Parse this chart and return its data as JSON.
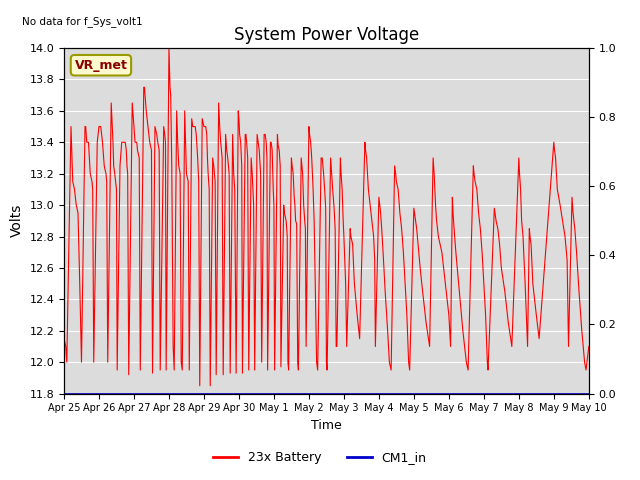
{
  "title": "System Power Voltage",
  "xlabel": "Time",
  "ylabel": "Volts",
  "ylim_left": [
    11.8,
    14.0
  ],
  "ylim_right": [
    0.0,
    1.0
  ],
  "background_color": "#ffffff",
  "plot_bg_color": "#dcdcdc",
  "no_data_text": "No data for f_Sys_volt1",
  "vr_met_label": "VR_met",
  "x_tick_labels": [
    "Apr 25",
    "Apr 26",
    "Apr 27",
    "Apr 28",
    "Apr 29",
    "Apr 30",
    "May 1",
    "May 2",
    "May 3",
    "May 4",
    "May 5",
    "May 6",
    "May 7",
    "May 8",
    "May 9",
    "May 10"
  ],
  "x_tick_positions": [
    0,
    1,
    2,
    3,
    4,
    5,
    6,
    7,
    8,
    9,
    10,
    11,
    12,
    13,
    14,
    15
  ],
  "right_yticks": [
    0.0,
    0.2,
    0.4,
    0.6,
    0.8,
    1.0
  ],
  "right_ytick_labels": [
    "0.0",
    "0.2",
    "0.4",
    "0.6",
    "0.8",
    "1.0"
  ],
  "battery_color": "#ff0000",
  "cm1_color": "#0000cc",
  "legend_entries": [
    "23x Battery",
    "CM1_in"
  ],
  "battery_data": [
    [
      0.0,
      12.15
    ],
    [
      0.05,
      12.1
    ],
    [
      0.08,
      12.0
    ],
    [
      0.2,
      13.5
    ],
    [
      0.25,
      13.15
    ],
    [
      0.3,
      13.1
    ],
    [
      0.35,
      13.0
    ],
    [
      0.4,
      12.95
    ],
    [
      0.45,
      12.5
    ],
    [
      0.5,
      12.0
    ],
    [
      0.6,
      13.5
    ],
    [
      0.62,
      13.5
    ],
    [
      0.65,
      13.4
    ],
    [
      0.7,
      13.4
    ],
    [
      0.75,
      13.2
    ],
    [
      0.8,
      13.15
    ],
    [
      0.82,
      13.1
    ],
    [
      0.85,
      12.0
    ],
    [
      0.95,
      13.4
    ],
    [
      1.0,
      13.5
    ],
    [
      1.05,
      13.5
    ],
    [
      1.1,
      13.4
    ],
    [
      1.15,
      13.25
    ],
    [
      1.2,
      13.2
    ],
    [
      1.22,
      13.15
    ],
    [
      1.25,
      12.0
    ],
    [
      1.35,
      13.65
    ],
    [
      1.4,
      13.4
    ],
    [
      1.42,
      13.25
    ],
    [
      1.45,
      13.2
    ],
    [
      1.5,
      13.1
    ],
    [
      1.52,
      11.95
    ],
    [
      1.6,
      13.25
    ],
    [
      1.65,
      13.4
    ],
    [
      1.7,
      13.4
    ],
    [
      1.75,
      13.4
    ],
    [
      1.78,
      13.35
    ],
    [
      1.8,
      13.25
    ],
    [
      1.82,
      13.2
    ],
    [
      1.85,
      11.92
    ],
    [
      1.95,
      13.65
    ],
    [
      2.0,
      13.5
    ],
    [
      2.03,
      13.4
    ],
    [
      2.05,
      13.4
    ],
    [
      2.08,
      13.4
    ],
    [
      2.1,
      13.35
    ],
    [
      2.15,
      13.3
    ],
    [
      2.18,
      11.95
    ],
    [
      2.28,
      13.75
    ],
    [
      2.3,
      13.75
    ],
    [
      2.35,
      13.6
    ],
    [
      2.4,
      13.5
    ],
    [
      2.45,
      13.4
    ],
    [
      2.5,
      13.35
    ],
    [
      2.53,
      11.93
    ],
    [
      2.6,
      13.5
    ],
    [
      2.65,
      13.45
    ],
    [
      2.68,
      13.4
    ],
    [
      2.72,
      13.35
    ],
    [
      2.75,
      11.95
    ],
    [
      2.85,
      13.5
    ],
    [
      2.88,
      13.45
    ],
    [
      2.9,
      13.4
    ],
    [
      2.92,
      11.95
    ],
    [
      3.0,
      14.0
    ],
    [
      3.03,
      13.75
    ],
    [
      3.05,
      13.7
    ],
    [
      3.08,
      13.25
    ],
    [
      3.12,
      12.1
    ],
    [
      3.15,
      11.95
    ],
    [
      3.22,
      13.6
    ],
    [
      3.25,
      13.4
    ],
    [
      3.28,
      13.25
    ],
    [
      3.32,
      13.2
    ],
    [
      3.35,
      12.0
    ],
    [
      3.38,
      11.95
    ],
    [
      3.45,
      13.6
    ],
    [
      3.5,
      13.2
    ],
    [
      3.55,
      13.15
    ],
    [
      3.58,
      11.95
    ],
    [
      3.65,
      13.55
    ],
    [
      3.68,
      13.5
    ],
    [
      3.7,
      13.5
    ],
    [
      3.72,
      13.5
    ],
    [
      3.75,
      13.5
    ],
    [
      3.78,
      13.45
    ],
    [
      3.82,
      13.3
    ],
    [
      3.85,
      13.15
    ],
    [
      3.88,
      11.85
    ],
    [
      3.95,
      13.55
    ],
    [
      4.0,
      13.5
    ],
    [
      4.05,
      13.5
    ],
    [
      4.08,
      13.45
    ],
    [
      4.1,
      13.3
    ],
    [
      4.12,
      13.2
    ],
    [
      4.15,
      13.1
    ],
    [
      4.18,
      11.85
    ],
    [
      4.25,
      13.3
    ],
    [
      4.28,
      13.25
    ],
    [
      4.3,
      13.2
    ],
    [
      4.32,
      13.15
    ],
    [
      4.35,
      11.92
    ],
    [
      4.42,
      13.65
    ],
    [
      4.45,
      13.5
    ],
    [
      4.48,
      13.4
    ],
    [
      4.5,
      13.35
    ],
    [
      4.52,
      13.3
    ],
    [
      4.55,
      11.92
    ],
    [
      4.62,
      13.45
    ],
    [
      4.65,
      13.35
    ],
    [
      4.68,
      13.3
    ],
    [
      4.72,
      13.2
    ],
    [
      4.75,
      11.93
    ],
    [
      4.82,
      13.45
    ],
    [
      4.85,
      13.2
    ],
    [
      4.88,
      13.1
    ],
    [
      4.92,
      11.93
    ],
    [
      4.98,
      13.6
    ],
    [
      5.0,
      13.55
    ],
    [
      5.02,
      13.45
    ],
    [
      5.05,
      13.4
    ],
    [
      5.08,
      13.25
    ],
    [
      5.1,
      11.93
    ],
    [
      5.18,
      13.45
    ],
    [
      5.2,
      13.45
    ],
    [
      5.22,
      13.4
    ],
    [
      5.25,
      13.3
    ],
    [
      5.28,
      11.95
    ],
    [
      5.35,
      13.3
    ],
    [
      5.38,
      13.2
    ],
    [
      5.4,
      13.1
    ],
    [
      5.42,
      13.0
    ],
    [
      5.45,
      11.95
    ],
    [
      5.52,
      13.45
    ],
    [
      5.55,
      13.4
    ],
    [
      5.58,
      13.35
    ],
    [
      5.62,
      13.2
    ],
    [
      5.65,
      12.0
    ],
    [
      5.72,
      13.45
    ],
    [
      5.75,
      13.45
    ],
    [
      5.78,
      13.4
    ],
    [
      5.8,
      13.3
    ],
    [
      5.82,
      11.95
    ],
    [
      5.9,
      13.4
    ],
    [
      5.92,
      13.4
    ],
    [
      5.95,
      13.35
    ],
    [
      5.98,
      13.1
    ],
    [
      6.0,
      13.0
    ],
    [
      6.02,
      11.95
    ],
    [
      6.1,
      13.45
    ],
    [
      6.12,
      13.38
    ],
    [
      6.15,
      13.35
    ],
    [
      6.18,
      13.25
    ],
    [
      6.2,
      11.97
    ],
    [
      6.28,
      13.0
    ],
    [
      6.3,
      12.95
    ],
    [
      6.35,
      12.9
    ],
    [
      6.38,
      12.8
    ],
    [
      6.4,
      12.0
    ],
    [
      6.42,
      11.95
    ],
    [
      6.5,
      13.3
    ],
    [
      6.52,
      13.25
    ],
    [
      6.55,
      13.2
    ],
    [
      6.58,
      13.05
    ],
    [
      6.6,
      13.0
    ],
    [
      6.62,
      12.9
    ],
    [
      6.65,
      12.88
    ],
    [
      6.68,
      12.0
    ],
    [
      6.7,
      11.95
    ],
    [
      6.78,
      13.3
    ],
    [
      6.8,
      13.25
    ],
    [
      6.82,
      13.2
    ],
    [
      6.85,
      13.0
    ],
    [
      6.88,
      12.9
    ],
    [
      6.9,
      12.85
    ],
    [
      6.92,
      12.1
    ],
    [
      7.0,
      13.5
    ],
    [
      7.02,
      13.45
    ],
    [
      7.05,
      13.4
    ],
    [
      7.08,
      13.3
    ],
    [
      7.1,
      13.2
    ],
    [
      7.12,
      13.1
    ],
    [
      7.15,
      12.9
    ],
    [
      7.18,
      12.5
    ],
    [
      7.22,
      12.0
    ],
    [
      7.25,
      11.95
    ],
    [
      7.35,
      13.3
    ],
    [
      7.38,
      13.3
    ],
    [
      7.4,
      13.25
    ],
    [
      7.42,
      13.2
    ],
    [
      7.45,
      13.1
    ],
    [
      7.48,
      12.98
    ],
    [
      7.5,
      12.0
    ],
    [
      7.52,
      11.95
    ],
    [
      7.62,
      13.3
    ],
    [
      7.65,
      13.2
    ],
    [
      7.68,
      13.1
    ],
    [
      7.72,
      12.98
    ],
    [
      7.75,
      12.85
    ],
    [
      7.78,
      12.1
    ],
    [
      7.8,
      12.1
    ],
    [
      7.9,
      13.3
    ],
    [
      7.92,
      13.2
    ],
    [
      7.95,
      13.1
    ],
    [
      7.98,
      12.9
    ],
    [
      8.0,
      12.8
    ],
    [
      8.05,
      12.5
    ],
    [
      8.08,
      12.1
    ],
    [
      8.18,
      12.85
    ],
    [
      8.2,
      12.8
    ],
    [
      8.25,
      12.75
    ],
    [
      8.3,
      12.5
    ],
    [
      8.38,
      12.3
    ],
    [
      8.45,
      12.15
    ],
    [
      8.6,
      13.4
    ],
    [
      8.62,
      13.35
    ],
    [
      8.65,
      13.3
    ],
    [
      8.7,
      13.1
    ],
    [
      8.75,
      13.0
    ],
    [
      8.8,
      12.9
    ],
    [
      8.85,
      12.8
    ],
    [
      8.88,
      12.65
    ],
    [
      8.9,
      12.1
    ],
    [
      9.0,
      13.05
    ],
    [
      9.05,
      12.95
    ],
    [
      9.08,
      12.85
    ],
    [
      9.12,
      12.7
    ],
    [
      9.18,
      12.45
    ],
    [
      9.25,
      12.2
    ],
    [
      9.3,
      12.0
    ],
    [
      9.35,
      11.95
    ],
    [
      9.45,
      13.25
    ],
    [
      9.48,
      13.2
    ],
    [
      9.5,
      13.15
    ],
    [
      9.55,
      13.1
    ],
    [
      9.6,
      12.95
    ],
    [
      9.65,
      12.85
    ],
    [
      9.7,
      12.7
    ],
    [
      9.75,
      12.5
    ],
    [
      9.8,
      12.3
    ],
    [
      9.85,
      12.0
    ],
    [
      9.88,
      11.95
    ],
    [
      10.0,
      12.98
    ],
    [
      10.05,
      12.9
    ],
    [
      10.08,
      12.85
    ],
    [
      10.12,
      12.75
    ],
    [
      10.18,
      12.6
    ],
    [
      10.25,
      12.45
    ],
    [
      10.35,
      12.25
    ],
    [
      10.45,
      12.1
    ],
    [
      10.55,
      13.3
    ],
    [
      10.58,
      13.2
    ],
    [
      10.6,
      13.1
    ],
    [
      10.62,
      13.0
    ],
    [
      10.65,
      12.9
    ],
    [
      10.7,
      12.8
    ],
    [
      10.8,
      12.7
    ],
    [
      10.9,
      12.5
    ],
    [
      11.0,
      12.3
    ],
    [
      11.05,
      12.1
    ],
    [
      11.1,
      13.05
    ],
    [
      11.12,
      12.95
    ],
    [
      11.15,
      12.85
    ],
    [
      11.2,
      12.7
    ],
    [
      11.3,
      12.45
    ],
    [
      11.4,
      12.2
    ],
    [
      11.5,
      12.0
    ],
    [
      11.55,
      11.95
    ],
    [
      11.7,
      13.25
    ],
    [
      11.72,
      13.2
    ],
    [
      11.75,
      13.15
    ],
    [
      11.8,
      13.1
    ],
    [
      11.85,
      12.95
    ],
    [
      11.9,
      12.85
    ],
    [
      11.95,
      12.7
    ],
    [
      12.0,
      12.5
    ],
    [
      12.05,
      12.3
    ],
    [
      12.1,
      12.0
    ],
    [
      12.12,
      11.95
    ],
    [
      12.3,
      12.98
    ],
    [
      12.35,
      12.9
    ],
    [
      12.4,
      12.85
    ],
    [
      12.45,
      12.75
    ],
    [
      12.5,
      12.6
    ],
    [
      12.6,
      12.45
    ],
    [
      12.7,
      12.25
    ],
    [
      12.8,
      12.1
    ],
    [
      13.0,
      13.3
    ],
    [
      13.02,
      13.2
    ],
    [
      13.05,
      13.1
    ],
    [
      13.08,
      12.9
    ],
    [
      13.12,
      12.8
    ],
    [
      13.18,
      12.5
    ],
    [
      13.25,
      12.1
    ],
    [
      13.3,
      12.85
    ],
    [
      13.32,
      12.8
    ],
    [
      13.35,
      12.75
    ],
    [
      13.4,
      12.5
    ],
    [
      13.5,
      12.3
    ],
    [
      13.58,
      12.15
    ],
    [
      14.0,
      13.4
    ],
    [
      14.02,
      13.35
    ],
    [
      14.05,
      13.3
    ],
    [
      14.1,
      13.1
    ],
    [
      14.18,
      13.0
    ],
    [
      14.25,
      12.9
    ],
    [
      14.32,
      12.8
    ],
    [
      14.38,
      12.65
    ],
    [
      14.42,
      12.1
    ],
    [
      14.52,
      13.05
    ],
    [
      14.55,
      12.95
    ],
    [
      14.6,
      12.85
    ],
    [
      14.65,
      12.7
    ],
    [
      14.72,
      12.45
    ],
    [
      14.8,
      12.2
    ],
    [
      14.88,
      12.0
    ],
    [
      14.92,
      11.95
    ],
    [
      15.0,
      12.1
    ]
  ],
  "cm1_data": [
    [
      0.0,
      11.8
    ],
    [
      15.0,
      11.8
    ]
  ]
}
